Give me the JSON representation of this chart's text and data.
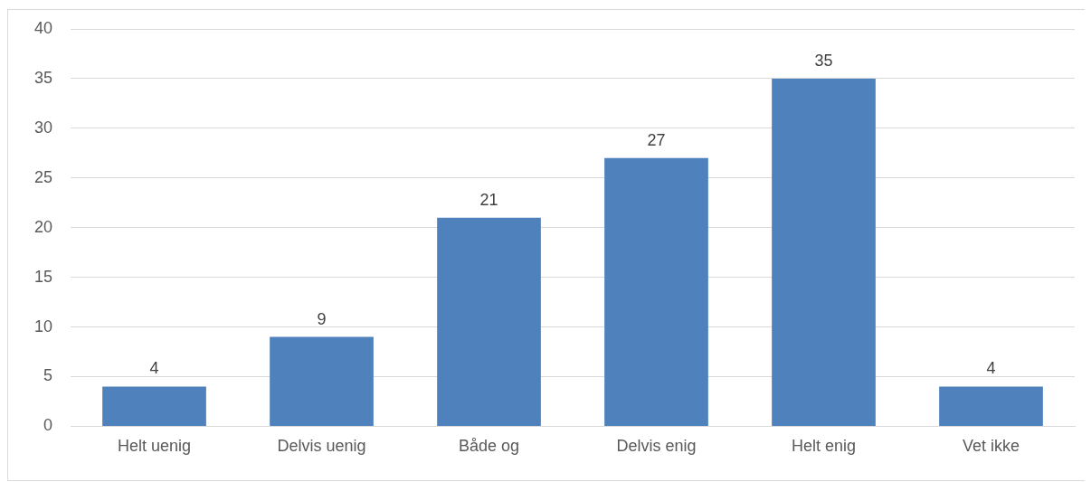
{
  "chart_data": {
    "type": "bar",
    "categories": [
      "Helt uenig",
      "Delvis uenig",
      "Både og",
      "Delvis enig",
      "Helt enig",
      "Vet ikke"
    ],
    "values": [
      4,
      9,
      21,
      27,
      35,
      4
    ],
    "color": "#4f81bd",
    "ylim": [
      0,
      40
    ],
    "yticks": [
      0,
      5,
      10,
      15,
      20,
      25,
      30,
      35,
      40
    ],
    "grid": "y",
    "legend": false,
    "data_labels": true
  }
}
